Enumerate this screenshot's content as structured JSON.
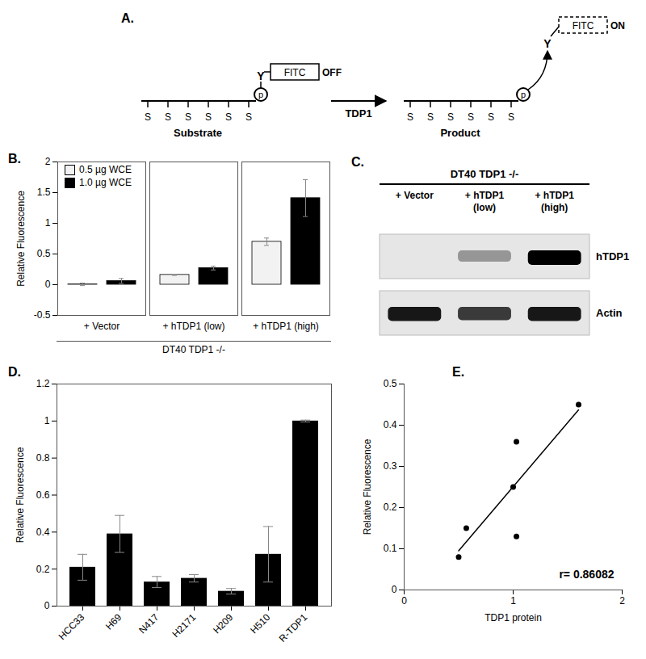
{
  "diagram": {
    "panel": "A.",
    "substrate": {
      "label": "Substrate",
      "backbone": [
        "S",
        "S",
        "S",
        "S",
        "S",
        "S"
      ],
      "phosphate": "p",
      "tyrosine": "Y",
      "fluorophore": "FITC",
      "state": "OFF"
    },
    "enzyme": "TDP1",
    "product": {
      "label": "Product",
      "backbone": [
        "S",
        "S",
        "S",
        "S",
        "S",
        "S"
      ],
      "phosphate": "p",
      "tyrosine": "Y",
      "fluorophore": "FITC",
      "state": "ON"
    }
  },
  "blot": {
    "panel": "C.",
    "title": "DT40 TDP1 -/-",
    "lanes": [
      [
        "+ Vector"
      ],
      [
        "+ hTDP1",
        "(low)"
      ],
      [
        "+ hTDP1",
        "(high)"
      ]
    ],
    "rows": [
      {
        "label": "hTDP1",
        "intensity": [
          0,
          0.35,
          1
        ]
      },
      {
        "label": "Actin",
        "intensity": [
          0.9,
          0.75,
          0.9
        ]
      }
    ]
  },
  "chart_data": [
    {
      "panel": "B.",
      "type": "bar",
      "categories": [
        "+ Vector",
        "+ hTDP1 (low)",
        "+ hTDP1 (high)"
      ],
      "xlabel": "DT40 TDP1 -/-",
      "ylabel": "Relative Fluorescence",
      "ylim": [
        -0.5,
        2
      ],
      "yticks": [
        -0.5,
        0,
        0.5,
        1,
        1.5,
        2
      ],
      "legend": "top-left",
      "series": [
        {
          "name": "0.5 µg WCE",
          "color": "#f2f2f2",
          "values": [
            0.005,
            0.16,
            0.7
          ],
          "errors": [
            0.02,
            0.01,
            0.06
          ]
        },
        {
          "name": "1.0 µg WCE",
          "color": "#000000",
          "values": [
            0.06,
            0.27,
            1.41
          ],
          "errors": [
            0.04,
            0.03,
            0.3
          ]
        }
      ]
    },
    {
      "panel": "D.",
      "type": "bar",
      "categories": [
        "HCC33",
        "H69",
        "N417",
        "H2171",
        "H209",
        "H510",
        "R-TDP1"
      ],
      "ylabel": "Relative Fluorescence",
      "ylim": [
        0,
        1.2
      ],
      "yticks": [
        0,
        0.2,
        0.4,
        0.6,
        0.8,
        1,
        1.2
      ],
      "color": "#000000",
      "values": [
        0.21,
        0.39,
        0.13,
        0.15,
        0.08,
        0.28,
        1.0
      ],
      "errors": [
        0.07,
        0.1,
        0.03,
        0.02,
        0.015,
        0.15,
        0.005
      ]
    },
    {
      "panel": "E.",
      "type": "scatter",
      "xlabel": "TDP1 protein",
      "ylabel": "Relative Fluorescence",
      "x": [
        0.5,
        0.57,
        1.0,
        1.03,
        1.03,
        1.6
      ],
      "values": [
        0.08,
        0.15,
        0.25,
        0.36,
        0.13,
        0.45
      ],
      "xlim": [
        0,
        2
      ],
      "xticks": [
        0,
        1,
        2
      ],
      "ylim": [
        0,
        0.5
      ],
      "yticks": [
        0,
        0.1,
        0.2,
        0.3,
        0.4,
        0.5
      ],
      "color": "#000000",
      "annotation": "r= 0.86082"
    }
  ]
}
